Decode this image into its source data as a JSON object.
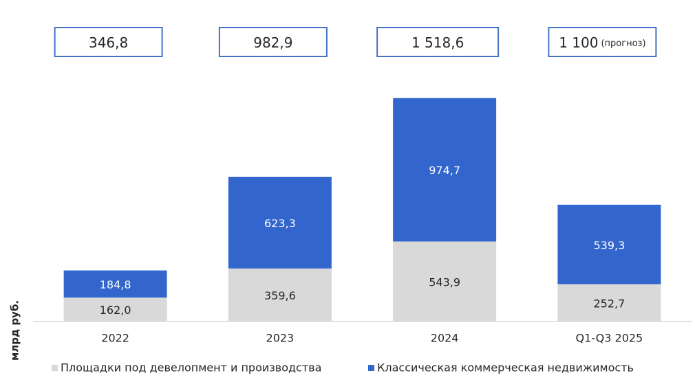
{
  "chart_data": {
    "type": "stacked_bar",
    "y_label": "млрд руб.",
    "categories": [
      "2022",
      "2023",
      "2024",
      "Q1-Q3 2025"
    ],
    "series": [
      {
        "name": "Площадки под девелопмент и производства",
        "color": "#d9d9d9",
        "label_color": "#262626",
        "values": [
          162.0,
          359.6,
          543.9,
          252.7
        ],
        "value_labels": [
          "162,0",
          "359,6",
          "543,9",
          "252,7"
        ]
      },
      {
        "name": "Классическая коммерческая недвижимость",
        "color": "#3366cc",
        "label_color": "#ffffff",
        "values": [
          184.8,
          623.3,
          974.7,
          539.3
        ],
        "value_labels": [
          "184,8",
          "623,3",
          "974,7",
          "539,3"
        ]
      }
    ],
    "totals": {
      "values": [
        346.8,
        982.9,
        1518.6,
        1100
      ],
      "value_labels": [
        "346,8",
        "982,9",
        "1 518,6",
        "1 100"
      ],
      "note_index": 3,
      "note": "(прогноз)",
      "box_color": "#4472c4"
    },
    "ylim": [
      0,
      1520
    ],
    "legend": "bottom"
  }
}
